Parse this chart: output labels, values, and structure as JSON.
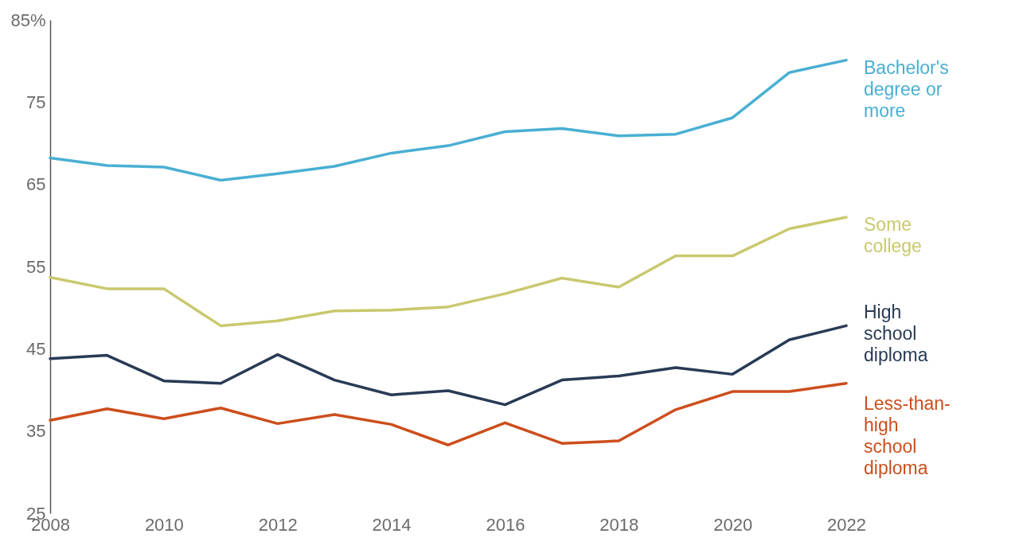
{
  "chart_data": {
    "type": "line",
    "x": [
      2008,
      2009,
      2010,
      2011,
      2012,
      2013,
      2014,
      2015,
      2016,
      2017,
      2018,
      2019,
      2020,
      2021,
      2022
    ],
    "series": [
      {
        "name": "Bachelor's degree or more",
        "color": "#49afd3",
        "values": [
          68.2,
          67.3,
          67.1,
          65.5,
          66.3,
          67.2,
          68.8,
          69.7,
          71.4,
          71.8,
          70.9,
          71.1,
          73.1,
          78.6,
          80.1
        ]
      },
      {
        "name": "Some college",
        "color": "#c9c86e",
        "values": [
          53.7,
          52.3,
          52.3,
          47.8,
          48.4,
          49.6,
          49.7,
          50.1,
          51.7,
          53.6,
          52.5,
          56.3,
          56.3,
          59.6,
          61.0
        ]
      },
      {
        "name": "High school diploma",
        "color": "#283a55",
        "values": [
          43.8,
          44.2,
          41.1,
          40.8,
          44.3,
          41.2,
          39.4,
          39.9,
          38.2,
          41.2,
          41.7,
          42.7,
          41.9,
          46.1,
          47.8
        ]
      },
      {
        "name": "Less-than-high school diploma",
        "color": "#cc4e1c",
        "values": [
          36.3,
          37.7,
          36.5,
          37.8,
          35.9,
          37.0,
          35.8,
          33.3,
          36.0,
          33.5,
          33.8,
          37.6,
          39.8,
          39.8,
          40.8
        ]
      }
    ],
    "xlim": [
      2008,
      2022
    ],
    "xticks": [
      2008,
      2010,
      2012,
      2014,
      2016,
      2018,
      2020,
      2022
    ],
    "ylim": [
      25,
      85
    ],
    "yticks": [
      25,
      35,
      45,
      55,
      65,
      75,
      {
        "value": 85,
        "label": "85%"
      }
    ]
  }
}
